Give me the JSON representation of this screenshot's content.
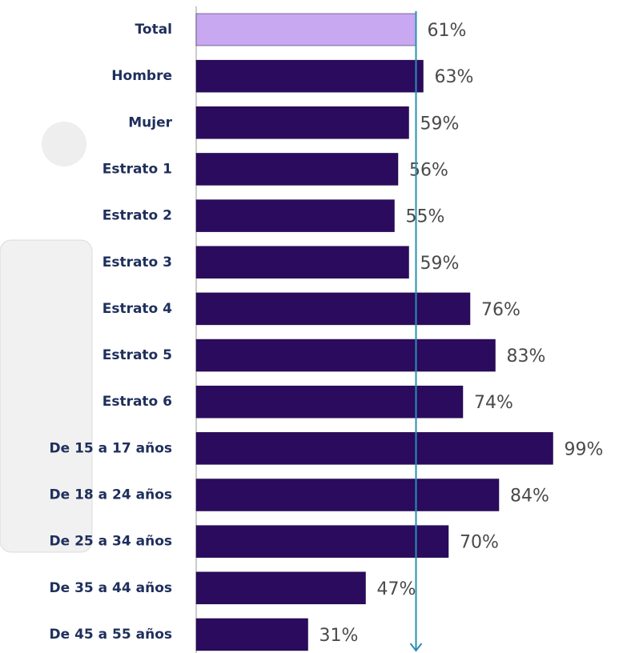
{
  "chart_data": {
    "type": "bar",
    "orientation": "horizontal",
    "categories": [
      "Total",
      "Hombre",
      "Mujer",
      "Estrato 1",
      "Estrato 2",
      "Estrato 3",
      "Estrato 4",
      "Estrato 5",
      "Estrato 6",
      "De 15 a 17 años",
      "De 18 a 24 años",
      "De 25 a 34 años",
      "De 35 a 44 años",
      "De 45 a 55 años"
    ],
    "values": [
      61,
      63,
      59,
      56,
      55,
      59,
      76,
      83,
      74,
      99,
      84,
      70,
      47,
      31
    ],
    "value_labels": [
      "61%",
      "63%",
      "59%",
      "56%",
      "55%",
      "59%",
      "76%",
      "83%",
      "74%",
      "99%",
      "84%",
      "70%",
      "47%",
      "31%"
    ],
    "colors": [
      "#c8a8f0",
      "#2b0b5e",
      "#2b0b5e",
      "#2b0b5e",
      "#2b0b5e",
      "#2b0b5e",
      "#2b0b5e",
      "#2b0b5e",
      "#2b0b5e",
      "#2b0b5e",
      "#2b0b5e",
      "#2b0b5e",
      "#2b0b5e",
      "#2b0b5e"
    ],
    "reference_color": "#2a8fb0"
  }
}
